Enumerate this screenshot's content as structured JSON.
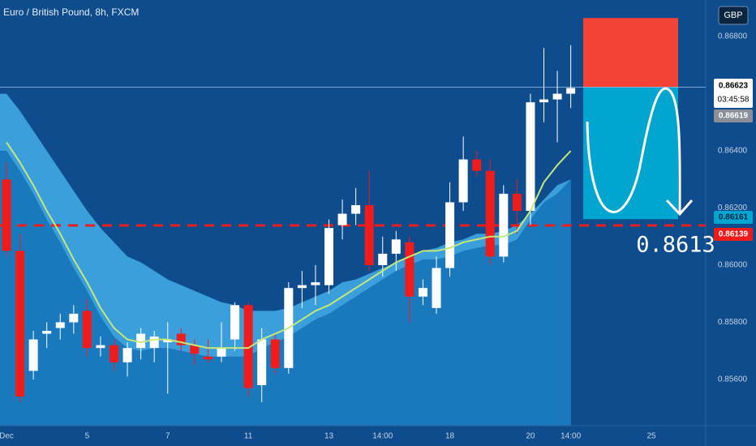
{
  "chart_data": {
    "type": "candlestick",
    "title": "Euro / British Pound, 8h, FXCM",
    "currency": "GBP",
    "categories": [
      "Dec",
      null,
      null,
      null,
      null,
      null,
      "5",
      null,
      null,
      null,
      null,
      null,
      "7",
      null,
      null,
      null,
      null,
      null,
      "11",
      null,
      null,
      null,
      null,
      null,
      "13",
      null,
      null,
      null,
      "14:00",
      null,
      null,
      null,
      null,
      "18",
      null,
      null,
      null,
      null,
      null,
      "20",
      null,
      null,
      "14:00",
      null,
      null,
      null,
      null,
      null,
      "25"
    ],
    "open": [
      0.863,
      0.8605,
      0.8563,
      0.8576,
      0.8578,
      0.858,
      0.8584,
      0.8571,
      0.8572,
      0.8566,
      0.8571,
      0.8571,
      0.8573,
      0.8576,
      0.8572,
      0.8568,
      0.8568,
      0.8574,
      0.8586,
      0.8558,
      0.8574,
      0.8564,
      0.8592,
      0.8593,
      0.8593,
      0.8614,
      0.8618,
      0.8621,
      0.86,
      0.8604,
      0.8608,
      0.8589,
      0.8585,
      0.8599,
      0.8622,
      0.8637,
      0.8633,
      0.8603,
      0.8625,
      0.8619,
      0.8657,
      0.8658,
      0.866,
      null,
      null,
      null,
      null,
      null,
      null
    ],
    "high": [
      0.8636,
      0.8611,
      0.8577,
      0.858,
      0.8583,
      0.8586,
      0.8588,
      0.8575,
      0.8574,
      0.8573,
      0.8578,
      0.8577,
      0.858,
      0.8578,
      0.8574,
      0.8574,
      0.858,
      0.8587,
      0.8587,
      0.8578,
      0.8576,
      0.8594,
      0.8598,
      0.86,
      0.8616,
      0.8623,
      0.8627,
      0.8633,
      0.861,
      0.8612,
      0.861,
      0.8595,
      0.8603,
      0.8629,
      0.8645,
      0.864,
      0.8637,
      0.8628,
      0.863,
      0.866,
      0.8676,
      0.8668,
      0.8677,
      null,
      null,
      null,
      null,
      null,
      null
    ],
    "low": [
      0.8603,
      0.8552,
      0.856,
      0.8571,
      0.8574,
      0.8576,
      0.8568,
      0.8568,
      0.8563,
      0.8561,
      0.8567,
      0.8566,
      0.8555,
      0.857,
      0.8565,
      0.8566,
      0.8566,
      0.857,
      0.8554,
      0.8552,
      0.8562,
      0.8562,
      0.8585,
      0.8586,
      0.859,
      0.8609,
      0.8614,
      0.8598,
      0.8596,
      0.8598,
      0.858,
      0.8586,
      0.8583,
      0.8596,
      0.8619,
      0.8631,
      0.86,
      0.8601,
      0.8611,
      0.8614,
      0.865,
      0.8643,
      0.8655,
      null,
      null,
      null,
      null,
      null,
      null
    ],
    "close": [
      0.8605,
      0.8554,
      0.8574,
      0.8577,
      0.858,
      0.8583,
      0.8571,
      0.8572,
      0.8566,
      0.8571,
      0.8576,
      0.8575,
      0.8574,
      0.8572,
      0.8569,
      0.8567,
      0.8571,
      0.8586,
      0.8557,
      0.8574,
      0.8564,
      0.8592,
      0.8593,
      0.8594,
      0.8613,
      0.8618,
      0.8621,
      0.86,
      0.8604,
      0.8609,
      0.8589,
      0.8592,
      0.8599,
      0.8622,
      0.8637,
      0.8633,
      0.8603,
      0.8625,
      0.8619,
      0.8657,
      0.8658,
      0.866,
      0.8662,
      null,
      null,
      null,
      null,
      null,
      null
    ],
    "up_color": "#ffffff",
    "down_color": "#f01c1c",
    "ma": {
      "color": "#c6e77a",
      "values": [
        0.8643,
        0.8636,
        0.8628,
        0.8619,
        0.8611,
        0.8602,
        0.8594,
        0.8585,
        0.8578,
        0.8574,
        0.8573,
        0.8574,
        0.8574,
        0.8573,
        0.8572,
        0.8571,
        0.8571,
        0.8571,
        0.8571,
        0.8574,
        0.8576,
        0.8578,
        0.8581,
        0.8584,
        0.8586,
        0.8589,
        0.8592,
        0.8595,
        0.8598,
        0.8601,
        0.8603,
        0.8605,
        0.8605,
        0.8606,
        0.8608,
        0.8609,
        0.861,
        0.861,
        0.8612,
        0.8619,
        0.8629,
        0.8635,
        0.864,
        null,
        null,
        null,
        null,
        null,
        null
      ]
    },
    "band": {
      "upper": [
        0.866,
        0.8654,
        0.8647,
        0.864,
        0.8633,
        0.8626,
        0.8619,
        0.8613,
        0.8608,
        0.8603,
        0.8601,
        0.8598,
        0.8595,
        0.8593,
        0.8591,
        0.8589,
        0.8587,
        0.8586,
        0.8584,
        0.8584,
        0.8584,
        0.8585,
        0.8587,
        0.8589,
        0.8591,
        0.8594,
        0.8595,
        0.8597,
        0.8599,
        0.8601,
        0.8603,
        0.8605,
        0.8606,
        0.8608,
        0.8609,
        0.8611,
        0.8611,
        0.8612,
        0.8614,
        0.8618,
        0.8623,
        0.8628,
        0.863,
        null,
        null,
        null,
        null,
        null,
        null
      ],
      "lower": [
        0.864,
        0.8633,
        0.8625,
        0.8616,
        0.8608,
        0.8599,
        0.8591,
        0.8582,
        0.8575,
        0.8571,
        0.857,
        0.8571,
        0.8571,
        0.857,
        0.8569,
        0.8568,
        0.8568,
        0.8568,
        0.8568,
        0.8571,
        0.8573,
        0.8575,
        0.8578,
        0.8581,
        0.8583,
        0.8586,
        0.8589,
        0.8592,
        0.8595,
        0.8598,
        0.86,
        0.8602,
        0.8602,
        0.8603,
        0.8605,
        0.8606,
        0.8607,
        0.8607,
        0.8609,
        0.8616,
        0.8622,
        0.8625,
        0.863,
        null,
        null,
        null,
        null,
        null,
        null
      ]
    },
    "ylim": [
      0.85438,
      0.86928
    ],
    "yticks": [
      {
        "value": 0.856,
        "label": "0.85600"
      },
      {
        "value": 0.858,
        "label": "0.85800"
      },
      {
        "value": 0.86,
        "label": "0.86000"
      },
      {
        "value": 0.862,
        "label": "0.86200"
      },
      {
        "value": 0.864,
        "label": "0.86400"
      },
      {
        "value": 0.868,
        "label": "0.86800"
      }
    ],
    "last_price": 0.86623,
    "countdown": "03:45:58",
    "bid": 0.86619,
    "position": {
      "stop": 0.86865,
      "entry": 0.86623,
      "target": 0.86161
    },
    "alert_line": 0.86139,
    "annotation": "0.8613"
  }
}
